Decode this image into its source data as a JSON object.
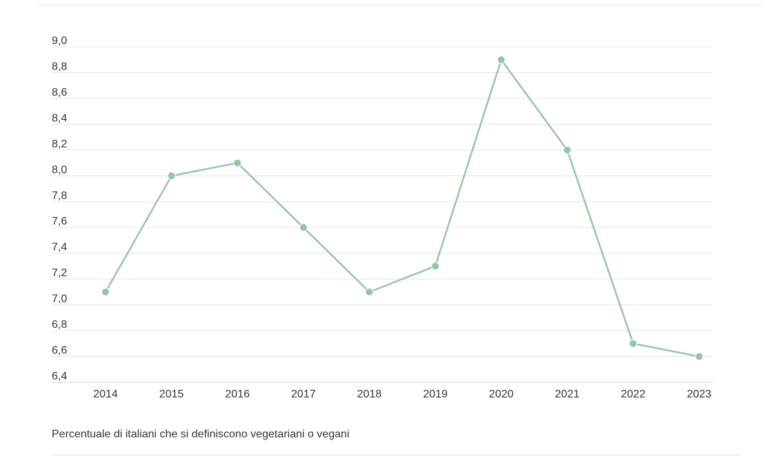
{
  "chart_data": {
    "type": "line",
    "title": "",
    "xlabel": "",
    "ylabel": "",
    "x": [
      "2014",
      "2015",
      "2016",
      "2017",
      "2018",
      "2019",
      "2020",
      "2021",
      "2022",
      "2023"
    ],
    "series": [
      {
        "values": [
          7.1,
          8.0,
          8.1,
          7.6,
          7.1,
          7.3,
          8.9,
          8.2,
          6.7,
          6.6
        ],
        "color": "#97c4a6"
      }
    ],
    "ylim": [
      6.4,
      9.0
    ],
    "yticks": [
      6.4,
      6.6,
      6.8,
      7.0,
      7.2,
      7.4,
      7.6,
      7.8,
      8.0,
      8.2,
      8.4,
      8.6,
      8.8,
      9.0
    ],
    "ytick_labels": [
      "6,4",
      "6,6",
      "6,8",
      "7,0",
      "7,2",
      "7,4",
      "7,6",
      "7,8",
      "8,0",
      "8,2",
      "8,4",
      "8,6",
      "8,8",
      "9,0"
    ],
    "grid": true,
    "legend": "none"
  },
  "caption": "Percentuale di italiani che si definiscono vegetariani o vegani"
}
